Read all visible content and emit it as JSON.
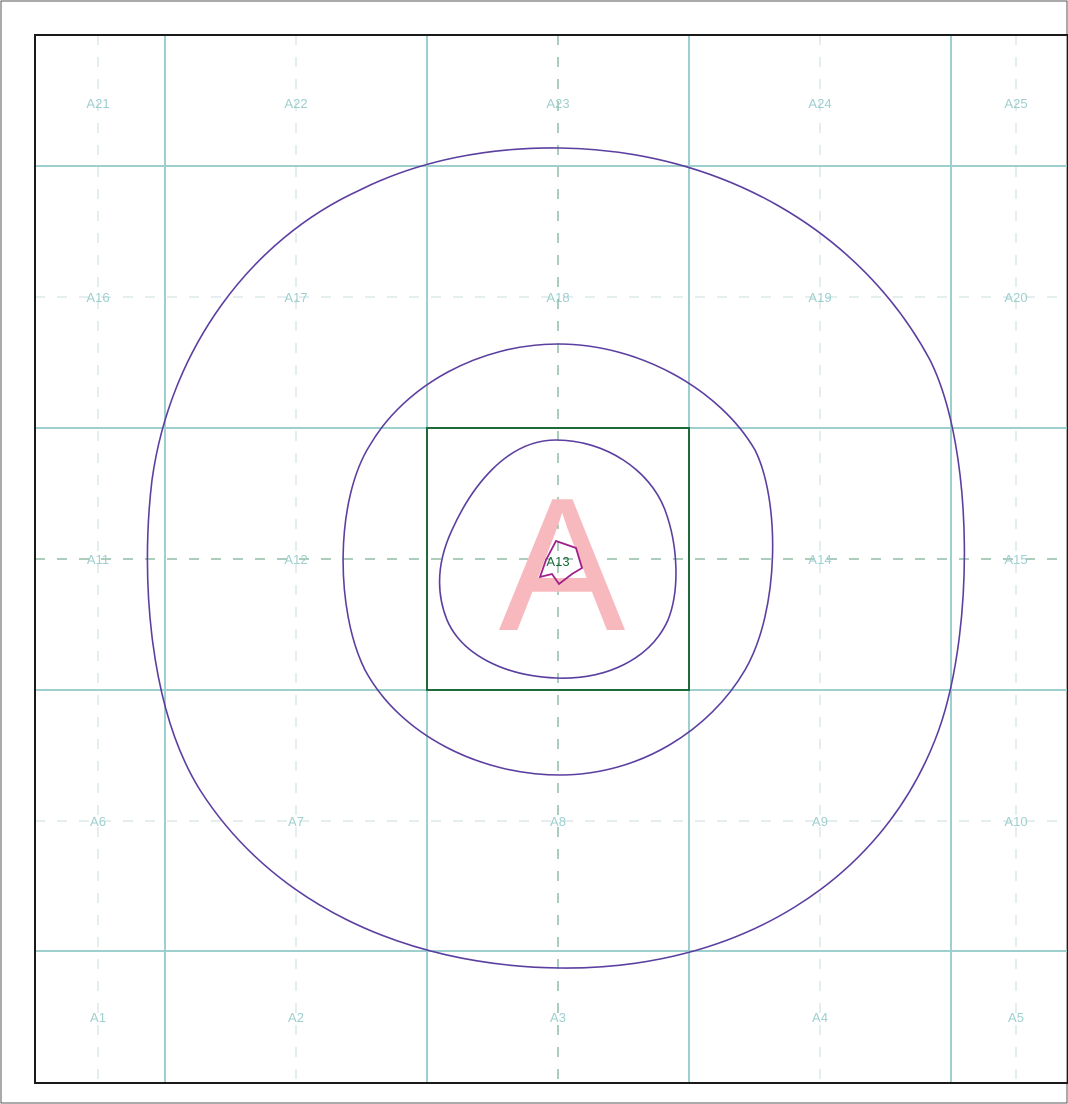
{
  "sheet": {
    "big_letter": "A",
    "center_cell_label": "A13",
    "cell_labels": [
      "A1",
      "A2",
      "A3",
      "A4",
      "A5",
      "A6",
      "A7",
      "A8",
      "A9",
      "A10",
      "A11",
      "A12",
      "A13",
      "A14",
      "A15",
      "A16",
      "A17",
      "A18",
      "A19",
      "A20",
      "A21",
      "A22",
      "A23",
      "A24",
      "A25"
    ]
  },
  "colors": {
    "page_border": "#1a1a1a",
    "grid_line": "#9ecfcf",
    "highlight_square": "#1e6a3a",
    "contour": "#5b3fa0",
    "inner_shape": "#a0208a",
    "big_letter": "#f7b9bd",
    "cell_label": "#9ecfcf"
  }
}
